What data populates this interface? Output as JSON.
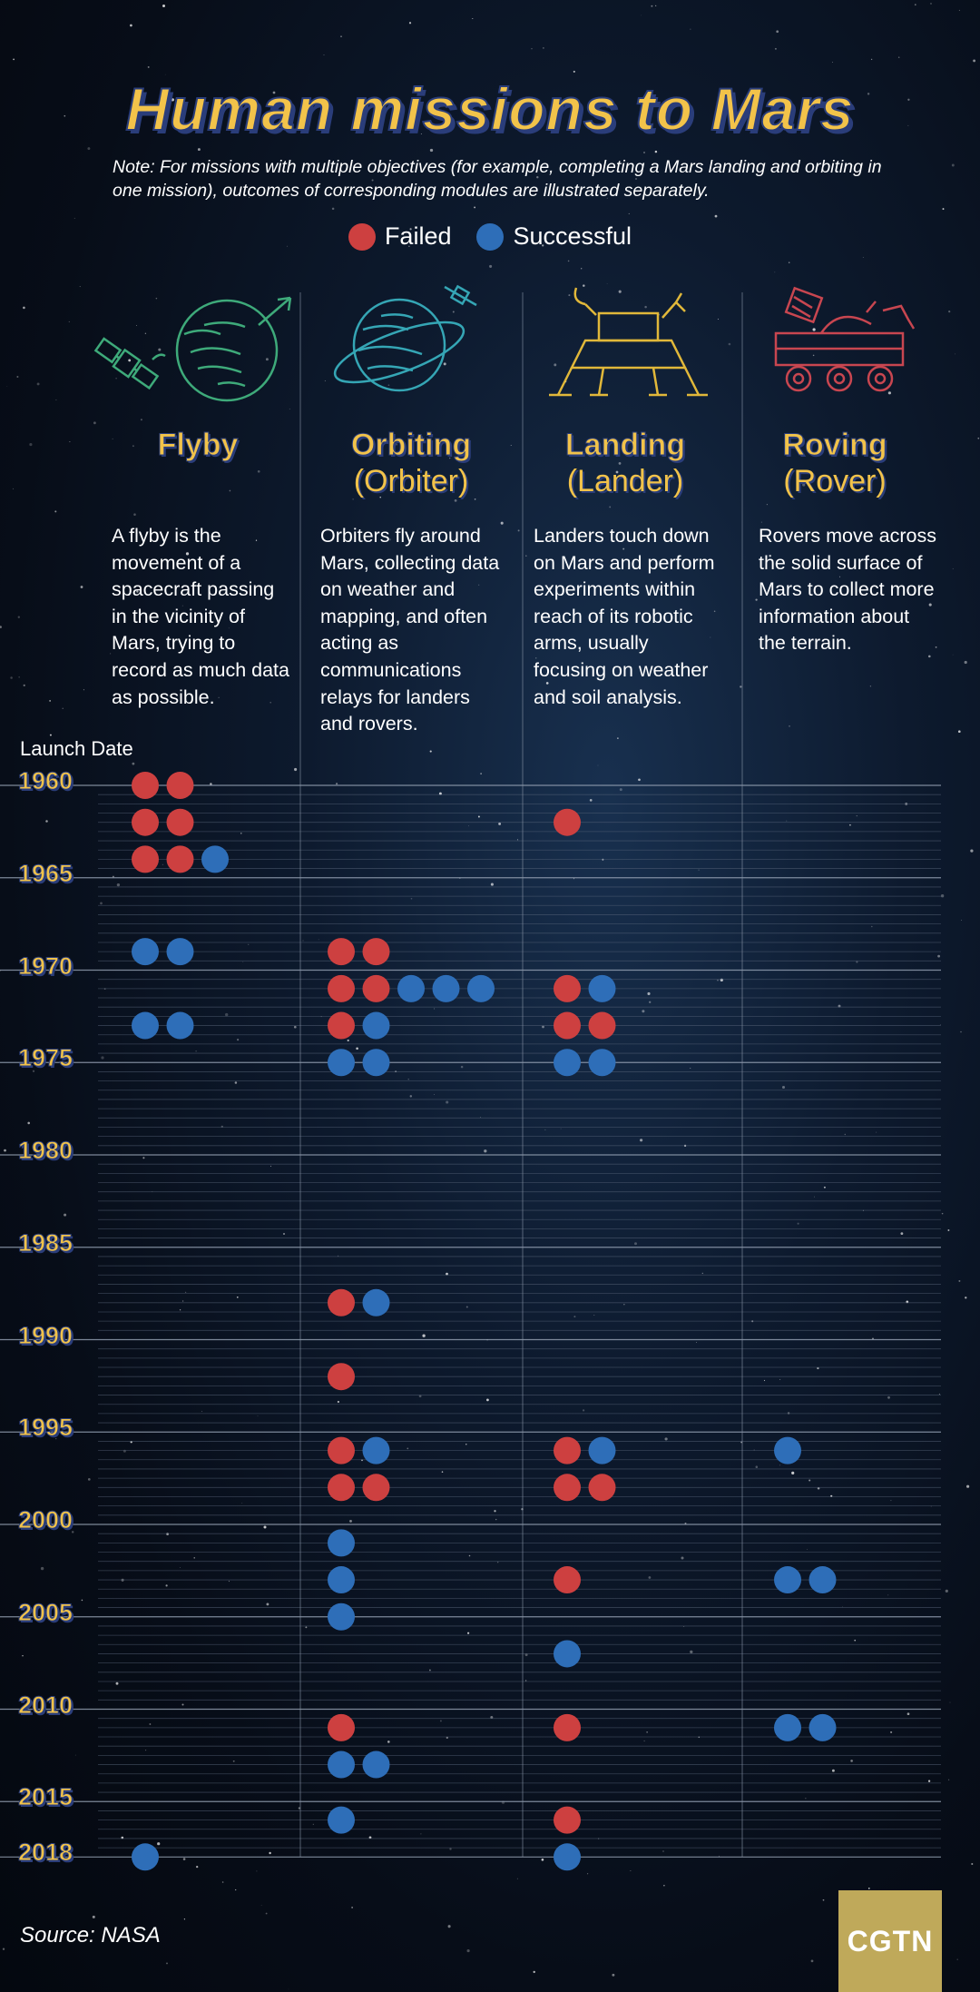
{
  "title": "Human missions to Mars",
  "note": "Note: For missions with multiple objectives (for example, completing a Mars landing and orbiting in one mission), outcomes of corresponding modules are illustrated separately.",
  "legend": {
    "failed": "Failed",
    "successful": "Successful"
  },
  "colors": {
    "failed": "#cd4040",
    "successful": "#2e6eb8",
    "accent": "#f2c34a",
    "flyby_icon": "#3eaa7a",
    "orbit_icon": "#35a6b5",
    "lander_icon": "#e1b83a",
    "rover_icon": "#c84650"
  },
  "columns": [
    {
      "title": "Flyby",
      "subtitle": "",
      "icon": "satellite-planet-icon",
      "description": "A flyby is the movement of a spacecraft passing in the vicinity of Mars, trying to record as much data as possible."
    },
    {
      "title": "Orbiting",
      "subtitle": "(Orbiter)",
      "icon": "orbiter-planet-icon",
      "description": "Orbiters fly around Mars, collecting data on weather and mapping, and often acting as communications relays for landers and rovers."
    },
    {
      "title": "Landing",
      "subtitle": "(Lander)",
      "icon": "lander-icon",
      "description": "Landers touch down on Mars and perform experiments within reach of its robotic arms, usually focusing on weather and soil analysis."
    },
    {
      "title": "Roving",
      "subtitle": "(Rover)",
      "icon": "rover-icon",
      "description": "Rovers move across the solid surface of Mars to collect more information about the terrain."
    }
  ],
  "axis_label": "Launch Date",
  "source": "Source: NASA",
  "logo": "CGTN",
  "chart_data": {
    "type": "scatter",
    "x_categories": [
      "Flyby",
      "Orbiting",
      "Landing",
      "Roving"
    ],
    "year_range": [
      1960,
      2018
    ],
    "year_ticks": [
      1960,
      1965,
      1970,
      1975,
      1980,
      1985,
      1990,
      1995,
      2000,
      2005,
      2010,
      2015,
      2018
    ],
    "rows": [
      {
        "year": 1960,
        "flyby": [
          "F",
          "F"
        ],
        "orbiting": [],
        "landing": [],
        "roving": []
      },
      {
        "year": 1962,
        "flyby": [
          "F",
          "F"
        ],
        "orbiting": [],
        "landing": [
          "F"
        ],
        "roving": []
      },
      {
        "year": 1964,
        "flyby": [
          "F",
          "F",
          "S"
        ],
        "orbiting": [],
        "landing": [],
        "roving": []
      },
      {
        "year": 1969,
        "flyby": [
          "S",
          "S"
        ],
        "orbiting": [
          "F",
          "F"
        ],
        "landing": [],
        "roving": []
      },
      {
        "year": 1971,
        "flyby": [],
        "orbiting": [
          "F",
          "F",
          "S",
          "S",
          "S"
        ],
        "landing": [
          "F",
          "S"
        ],
        "roving": []
      },
      {
        "year": 1973,
        "flyby": [
          "S",
          "S"
        ],
        "orbiting": [
          "F",
          "S"
        ],
        "landing": [
          "F",
          "F"
        ],
        "roving": []
      },
      {
        "year": 1975,
        "flyby": [],
        "orbiting": [
          "S",
          "S"
        ],
        "landing": [
          "S",
          "S"
        ],
        "roving": []
      },
      {
        "year": 1988,
        "flyby": [],
        "orbiting": [
          "F",
          "S"
        ],
        "landing": [],
        "roving": []
      },
      {
        "year": 1992,
        "flyby": [],
        "orbiting": [
          "F"
        ],
        "landing": [],
        "roving": []
      },
      {
        "year": 1996,
        "flyby": [],
        "orbiting": [
          "F",
          "S"
        ],
        "landing": [
          "F",
          "S"
        ],
        "roving": [
          "S"
        ]
      },
      {
        "year": 1998,
        "flyby": [],
        "orbiting": [
          "F",
          "F"
        ],
        "landing": [
          "F",
          "F"
        ],
        "roving": []
      },
      {
        "year": 2001,
        "flyby": [],
        "orbiting": [
          "S"
        ],
        "landing": [],
        "roving": []
      },
      {
        "year": 2003,
        "flyby": [],
        "orbiting": [
          "S"
        ],
        "landing": [
          "F"
        ],
        "roving": [
          "S",
          "S"
        ]
      },
      {
        "year": 2005,
        "flyby": [],
        "orbiting": [
          "S"
        ],
        "landing": [],
        "roving": []
      },
      {
        "year": 2007,
        "flyby": [],
        "orbiting": [],
        "landing": [
          "S"
        ],
        "roving": []
      },
      {
        "year": 2011,
        "flyby": [],
        "orbiting": [
          "F"
        ],
        "landing": [
          "F"
        ],
        "roving": [
          "S",
          "S"
        ]
      },
      {
        "year": 2013,
        "flyby": [],
        "orbiting": [
          "S",
          "S"
        ],
        "landing": [],
        "roving": []
      },
      {
        "year": 2016,
        "flyby": [],
        "orbiting": [
          "S"
        ],
        "landing": [
          "F"
        ],
        "roving": []
      },
      {
        "year": 2018,
        "flyby": [
          "S"
        ],
        "orbiting": [],
        "landing": [
          "S"
        ],
        "roving": []
      }
    ]
  }
}
